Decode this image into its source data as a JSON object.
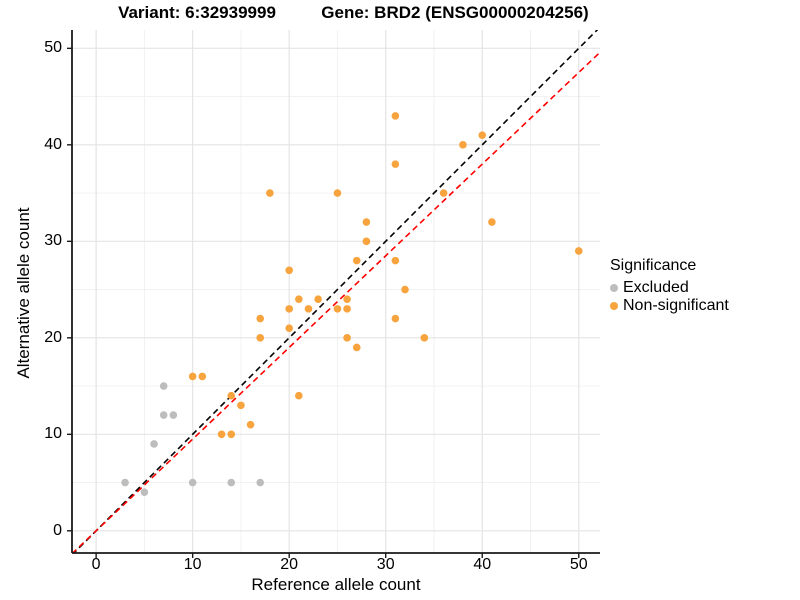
{
  "titles": {
    "left": "Variant: 6:32939999",
    "right": "Gene: BRD2 (ENSG00000204256)"
  },
  "axes": {
    "x_label": "Reference allele count",
    "y_label": "Alternative allele count"
  },
  "legend": {
    "title": "Significance",
    "items": [
      {
        "label": "Excluded",
        "color": "#BDBDBD"
      },
      {
        "label": "Non-significant",
        "color": "#F8A43E"
      }
    ]
  },
  "chart_data": {
    "type": "scatter",
    "title": "Variant: 6:32939999 / Gene: BRD2 (ENSG00000204256)",
    "xlabel": "Reference allele count",
    "ylabel": "Alternative allele count",
    "xlim": [
      -2.5,
      52.2
    ],
    "ylim": [
      -2.3,
      51.9
    ],
    "x_ticks": [
      0,
      10,
      20,
      30,
      40,
      50
    ],
    "y_ticks": [
      0,
      10,
      20,
      30,
      40,
      50
    ],
    "x_minor": [
      5,
      15,
      25,
      35,
      45
    ],
    "y_minor": [
      5,
      15,
      25,
      35,
      45
    ],
    "grid": true,
    "legend_position": "right",
    "point_radius": 3.8,
    "series": [
      {
        "name": "Excluded",
        "color": "#BDBDBD",
        "points": [
          [
            3,
            5
          ],
          [
            5,
            4
          ],
          [
            6,
            9
          ],
          [
            7,
            12
          ],
          [
            8,
            12
          ],
          [
            7,
            15
          ],
          [
            10,
            5
          ],
          [
            14,
            5
          ],
          [
            17,
            5
          ]
        ]
      },
      {
        "name": "Non-significant",
        "color": "#F8A43E",
        "points": [
          [
            10,
            16
          ],
          [
            11,
            16
          ],
          [
            13,
            10
          ],
          [
            14,
            10
          ],
          [
            14,
            14
          ],
          [
            15,
            13
          ],
          [
            16,
            11
          ],
          [
            17,
            20
          ],
          [
            17,
            22
          ],
          [
            18,
            35
          ],
          [
            20,
            21
          ],
          [
            20,
            23
          ],
          [
            20,
            27
          ],
          [
            21,
            14
          ],
          [
            21,
            24
          ],
          [
            22,
            23
          ],
          [
            23,
            24
          ],
          [
            25,
            23
          ],
          [
            25,
            35
          ],
          [
            26,
            20
          ],
          [
            26,
            23
          ],
          [
            26,
            24
          ],
          [
            27,
            19
          ],
          [
            27,
            28
          ],
          [
            28,
            30
          ],
          [
            28,
            32
          ],
          [
            31,
            22
          ],
          [
            31,
            28
          ],
          [
            31,
            38
          ],
          [
            31,
            43
          ],
          [
            32,
            25
          ],
          [
            34,
            20
          ],
          [
            36,
            35
          ],
          [
            38,
            40
          ],
          [
            40,
            41
          ],
          [
            41,
            32
          ],
          [
            50,
            29
          ]
        ]
      }
    ],
    "ref_lines": [
      {
        "name": "identity",
        "color": "#000000",
        "style": "dashed",
        "slope": 1,
        "intercept": 0
      },
      {
        "name": "expected",
        "color": "#FF0000",
        "style": "dashed",
        "slope": 0.95,
        "intercept": 0
      }
    ],
    "grid_major_color": "#E4E4E4",
    "grid_minor_color": "#F0F0F0",
    "axis_line_color": "#1a1a1a"
  }
}
